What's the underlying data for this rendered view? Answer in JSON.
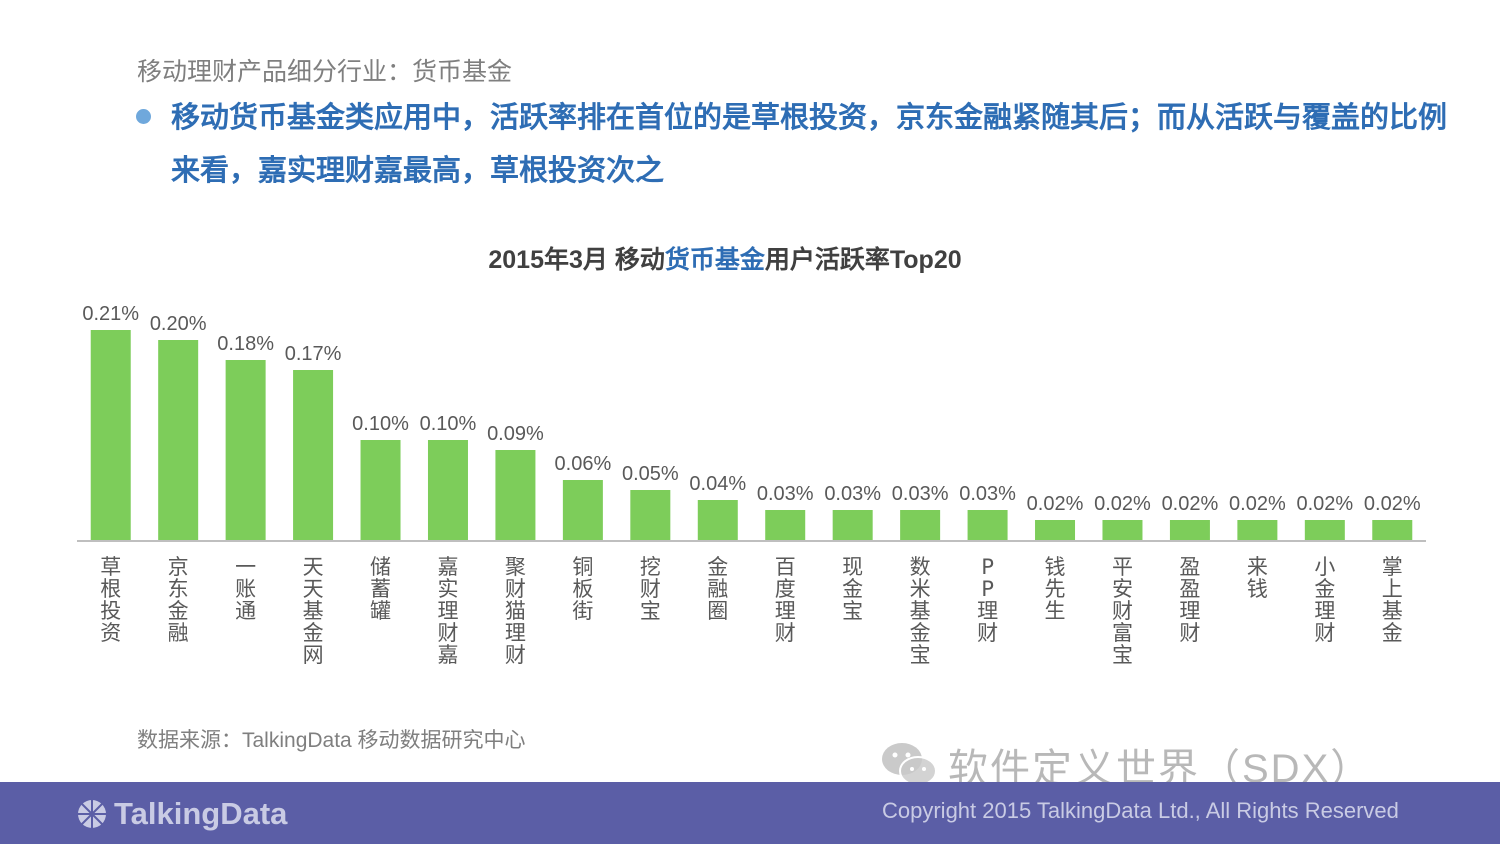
{
  "header": {
    "section_title": "移动理财产品细分行业：货币基金",
    "headline": "移动货币基金类应用中，活跃率排在首位的是草根投资，京东金融紧随其后；而从活跃与覆盖的比例来看，嘉实理财嘉最高，草根投资次之"
  },
  "chart_title": {
    "pre": "2015年3月 移动",
    "highlight": "货币基金",
    "post": "用户活跃率Top20"
  },
  "chart_data": {
    "type": "bar",
    "title": "2015年3月 移动货币基金用户活跃率Top20",
    "xlabel": "",
    "ylabel": "",
    "ylim": [
      0,
      0.23
    ],
    "grid": false,
    "unit": "%",
    "categories": [
      "草根投资",
      "京东金融",
      "一账通",
      "天天基金网",
      "储蓄罐",
      "嘉实理财嘉",
      "聚财猫理财",
      "铜板街",
      "挖财宝",
      "金融圈",
      "百度理财",
      "现金宝",
      "数米基金宝",
      "PP理财",
      "钱先生",
      "平安财富宝",
      "盈盈理财",
      "来钱",
      "小金理财",
      "掌上基金"
    ],
    "values": [
      0.21,
      0.2,
      0.18,
      0.17,
      0.1,
      0.1,
      0.09,
      0.06,
      0.05,
      0.04,
      0.03,
      0.03,
      0.03,
      0.03,
      0.02,
      0.02,
      0.02,
      0.02,
      0.02,
      0.02
    ],
    "labels": [
      "0.21%",
      "0.20%",
      "0.18%",
      "0.17%",
      "0.10%",
      "0.10%",
      "0.09%",
      "0.06%",
      "0.05%",
      "0.04%",
      "0.03%",
      "0.03%",
      "0.03%",
      "0.03%",
      "0.02%",
      "0.02%",
      "0.02%",
      "0.02%",
      "0.02%",
      "0.02%"
    ]
  },
  "colors": {
    "bar": "#7dcd5a",
    "axis": "#bfbfbf",
    "headline": "#2e6db4",
    "footer": "#5b5ea6"
  },
  "source": "数据来源：TalkingData 移动数据研究中心",
  "watermark": {
    "icon": "wechat-icon",
    "text": "软件定义世界（SDX）"
  },
  "footer": {
    "logo_icon": "talkingdata-logo-icon",
    "logo_text": "TalkingData",
    "copyright": "Copyright 2015 TalkingData Ltd., All Rights Reserved"
  }
}
